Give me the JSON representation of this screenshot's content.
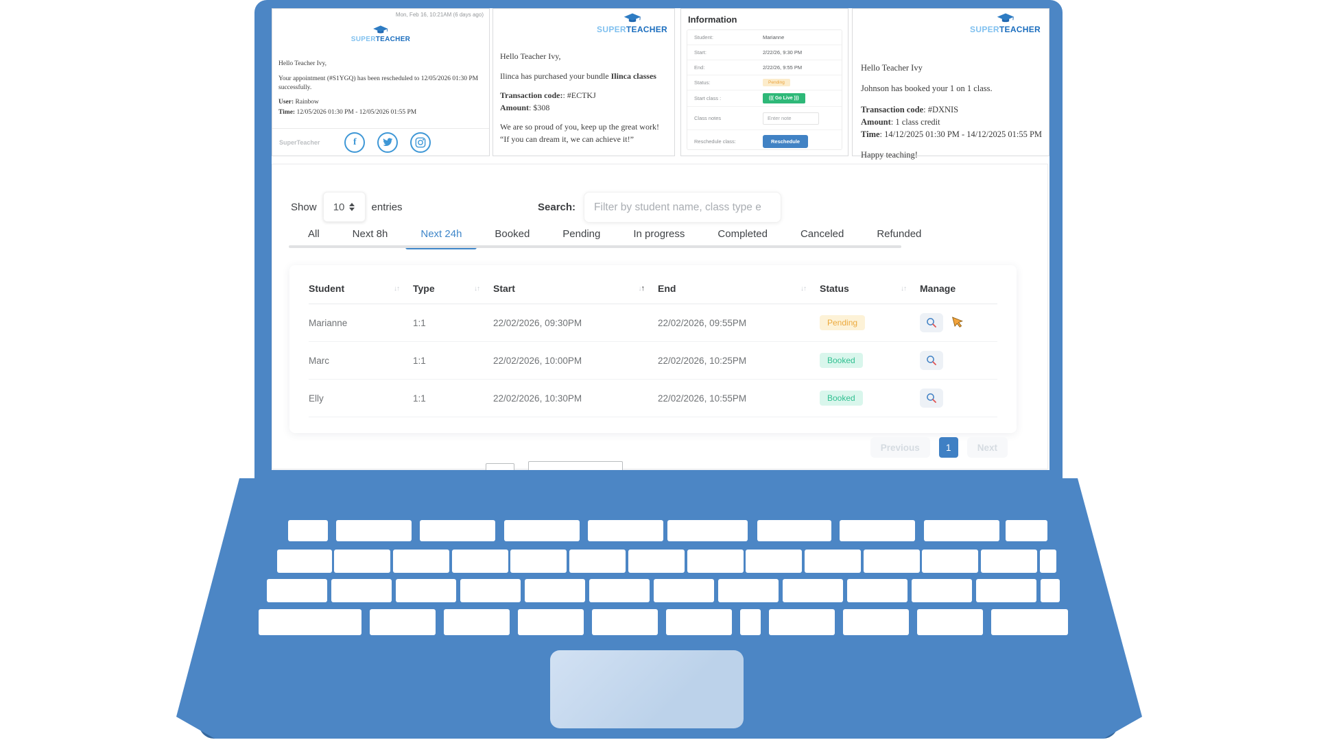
{
  "brand": {
    "super": "SUPER",
    "teacher": "TEACHER"
  },
  "email_reschedule": {
    "timestamp": "Mon, Feb 16, 10:21AM (6 days ago)",
    "greeting": "Hello Teacher Ivy,",
    "body": "Your appointment (#S1YGQ) has been rescheduled to 12/05/2026 01:30 PM successfully.",
    "user_label": "User:",
    "user_value": "Rainbow",
    "time_label": "Time:",
    "time_value": "12/05/2026 01:30 PM - 12/05/2026 01:55 PM",
    "footer_brand": "SuperTeacher"
  },
  "email_purchase": {
    "greeting": "Hello Teacher Ivy,",
    "purchase_prefix": "Ilinca has purchased your bundle",
    "purchase_bold": "Ilinca classes",
    "tx_label": "Transaction code:",
    "tx_value": ": #ECTKJ",
    "amount_label": "Amount",
    "amount_value": ": $308",
    "line_proud": "We are so proud of you, keep up the great work!",
    "line_quote": "“If you can dream it, we can achieve it!”"
  },
  "info_panel": {
    "title": "Information",
    "rows": [
      {
        "label": "Student:",
        "value": "Marianne"
      },
      {
        "label": "Start:",
        "value": "2/22/26, 9:30 PM"
      },
      {
        "label": "End:",
        "value": "2/22/26, 9:55 PM"
      },
      {
        "label": "Status:",
        "value": "Pending"
      },
      {
        "label": "Start class :",
        "value": "((( Go Live )))"
      },
      {
        "label": "Class notes",
        "value": "Enter note"
      },
      {
        "label": "Reschedule class:",
        "value": "Reschedule"
      }
    ]
  },
  "email_booking": {
    "greeting": "Hello Teacher Ivy",
    "line1": "Johnson has booked your 1 on 1 class.",
    "tx_label": "Transaction code",
    "tx_value": ": #DXNIS",
    "amount_label": "Amount",
    "amount_value": ": 1 class credit",
    "time_label": "Time",
    "time_value": ": 14/12/2025 01:30 PM - 14/12/2025 01:55 PM",
    "closing": "Happy teaching!"
  },
  "dashboard": {
    "show_label": "Show",
    "page_size": "10",
    "entries_label": "entries",
    "search_label": "Search:",
    "search_placeholder": "Filter by student name, class type e",
    "tabs": [
      "All",
      "Next 8h",
      "Next 24h",
      "Booked",
      "Pending",
      "In progress",
      "Completed",
      "Canceled",
      "Refunded"
    ],
    "active_tab": "Next 24h",
    "table": {
      "headers": [
        "Student",
        "Type",
        "Start",
        "End",
        "Status",
        "Manage"
      ],
      "rows": [
        {
          "student": "Marianne",
          "type": "1:1",
          "start": "22/02/2026, 09:30PM",
          "end": "22/02/2026, 09:55PM",
          "status": "Pending"
        },
        {
          "student": "Marc",
          "type": "1:1",
          "start": "22/02/2026, 10:00PM",
          "end": "22/02/2026, 10:25PM",
          "status": "Booked"
        },
        {
          "student": "Elly",
          "type": "1:1",
          "start": "22/02/2026, 10:30PM",
          "end": "22/02/2026, 10:55PM",
          "status": "Booked"
        }
      ]
    },
    "pagination": {
      "previous": "Previous",
      "page": "1",
      "next": "Next"
    }
  },
  "icons": {
    "sort_down": "↓",
    "sort_up": "↑",
    "facebook": "f"
  },
  "colors": {
    "laptop_blue": "#4c86c5",
    "laptop_dark_blue": "#35679d",
    "brand_super": "#7fc0ef",
    "brand_teacher": "#1a6dbe",
    "active_tab": "#3e86c9",
    "pending_text": "#eca93c",
    "pending_bg": "#fdf2d7",
    "booked_text": "#2fbf90",
    "booked_bg": "#d9f6ec",
    "golive_green": "#2eb878",
    "reschedule_blue": "#4182c4",
    "page_current_blue": "#3f80c4"
  }
}
